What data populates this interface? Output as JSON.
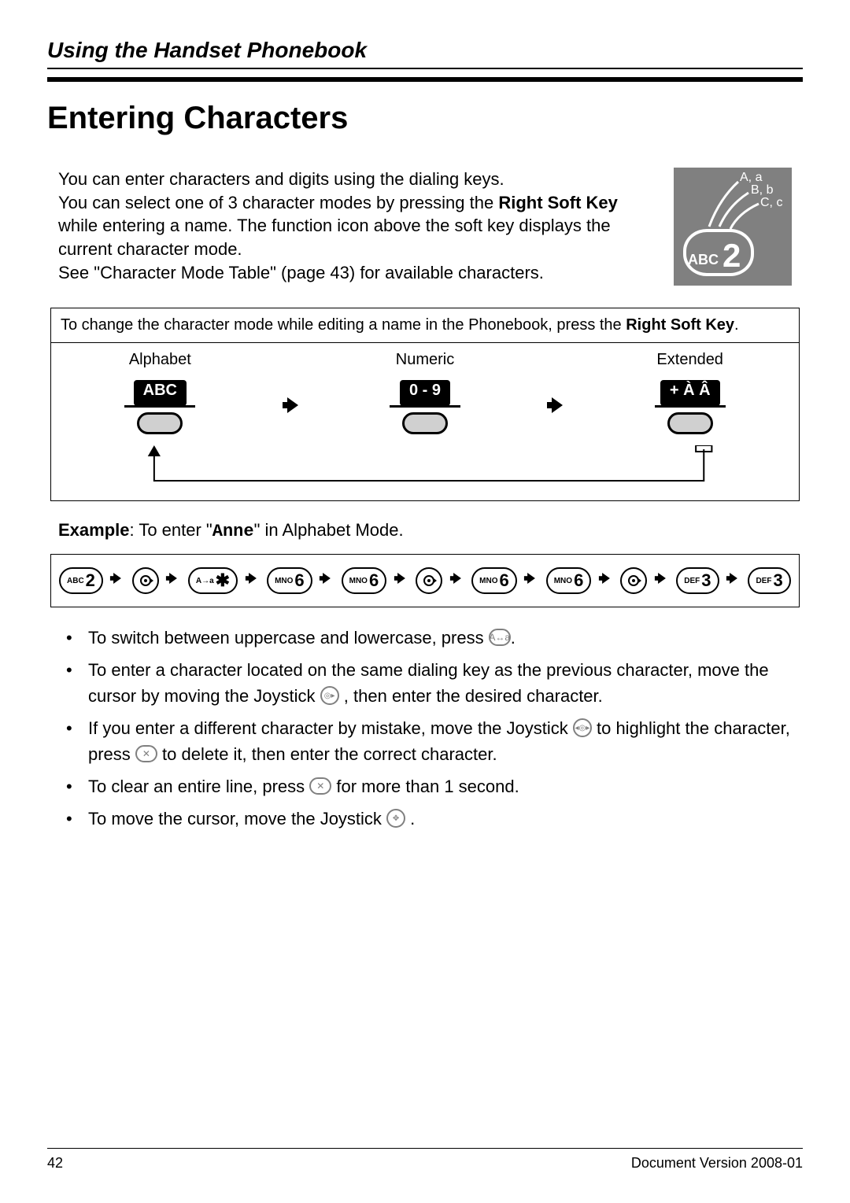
{
  "header": {
    "section": "Using the Handset Phonebook"
  },
  "title": "Entering Characters",
  "intro": {
    "line1": "You can enter characters and digits using the dialing keys.",
    "line2a": "You can select one of 3 character modes by pressing the ",
    "line2b": "Right Soft Key",
    "line2c": " while entering a name. The function icon above the soft key displays the current character mode.",
    "line3": "See \"Character Mode Table\" (page 43) for available characters."
  },
  "key_graphic": {
    "letters": [
      "A, a",
      "B, b",
      "C, c"
    ],
    "abc": "ABC",
    "digit": "2"
  },
  "mode_table": {
    "caption_a": "To change the character mode while editing a name in the Phonebook, press the ",
    "caption_b": "Right Soft Key",
    "caption_c": ".",
    "cols": [
      "Alphabet",
      "Numeric",
      "Extended"
    ],
    "labels": [
      "ABC",
      "0 - 9",
      "+ À Â"
    ]
  },
  "example": {
    "prefix": "Example",
    "mid": ": To enter \"",
    "word": "Anne",
    "suffix": "\" in Alphabet Mode."
  },
  "sequence": [
    {
      "t": "key",
      "small": "ABC",
      "big": "2"
    },
    {
      "t": "arrow"
    },
    {
      "t": "joy",
      "dir": "right"
    },
    {
      "t": "arrow"
    },
    {
      "t": "key",
      "small": "A→a",
      "big": "✱"
    },
    {
      "t": "arrow"
    },
    {
      "t": "key",
      "small": "MNO",
      "big": "6"
    },
    {
      "t": "arrow"
    },
    {
      "t": "key",
      "small": "MNO",
      "big": "6"
    },
    {
      "t": "arrow"
    },
    {
      "t": "joy",
      "dir": "right"
    },
    {
      "t": "arrow"
    },
    {
      "t": "key",
      "small": "MNO",
      "big": "6"
    },
    {
      "t": "arrow"
    },
    {
      "t": "key",
      "small": "MNO",
      "big": "6"
    },
    {
      "t": "arrow"
    },
    {
      "t": "joy",
      "dir": "right"
    },
    {
      "t": "arrow"
    },
    {
      "t": "key",
      "small": "DEF",
      "big": "3"
    },
    {
      "t": "arrow"
    },
    {
      "t": "key",
      "small": "DEF",
      "big": "3"
    }
  ],
  "notes": {
    "n1a": "To switch between uppercase and lowercase, press ",
    "n1b": ".",
    "n2a": "To enter a character located on the same dialing key as the previous character, move the cursor by moving the Joystick ",
    "n2b": " , then enter the desired character.",
    "n3a": "If you enter a different character by mistake, move the Joystick ",
    "n3b": " to highlight the character, press ",
    "n3c": " to delete it, then enter the correct character.",
    "n4a": "To clear an entire line, press ",
    "n4b": " for more than 1 second.",
    "n5a": "To move the cursor, move the Joystick ",
    "n5b": " ."
  },
  "footer": {
    "page": "42",
    "version": "Document Version  2008-01"
  },
  "colors": {
    "gray": "#808080",
    "black": "#000000",
    "white": "#ffffff"
  }
}
